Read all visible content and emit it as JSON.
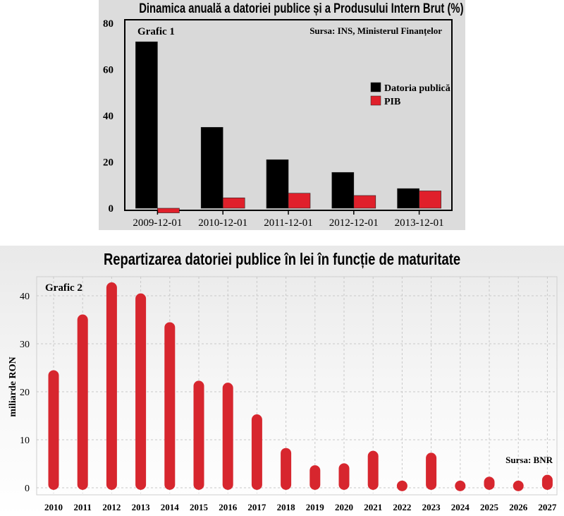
{
  "chart_data": [
    {
      "type": "bar",
      "title": "Dinamica anuală a datoriei publice și a Produsului Intern Brut (%)",
      "panel_label": "Grafic 1",
      "source": "Sursa: INS, Ministerul Finanțelor",
      "categories": [
        "2009-12-01",
        "2010-12-01",
        "2011-12-01",
        "2012-12-01",
        "2013-12-01"
      ],
      "series": [
        {
          "name": "Datoria publică",
          "color": "#000000",
          "values": [
            72,
            35,
            21,
            15.5,
            8.5
          ]
        },
        {
          "name": "PIB",
          "color": "#e0202b",
          "values": [
            -2,
            4.5,
            6.5,
            5.5,
            7.5
          ]
        }
      ],
      "ylim": [
        -2,
        80
      ],
      "yticks": [
        0,
        20,
        40,
        60,
        80
      ],
      "legend": "right",
      "grid": false
    },
    {
      "type": "bar",
      "title": "Repartizarea datoriei publice în lei în funcție de maturitate",
      "panel_label": "Grafic 2",
      "source": "Sursa: BNR",
      "ylabel": "miliarde RON",
      "categories": [
        "2010",
        "2011",
        "2012",
        "2013",
        "2014",
        "2015",
        "2016",
        "2017",
        "2018",
        "2019",
        "2020",
        "2021",
        "2022",
        "2023",
        "2024",
        "2025",
        "2026",
        "2027"
      ],
      "series": [
        {
          "color": "#d7262e",
          "values": [
            24.2,
            35.8,
            42.5,
            40.2,
            34.2,
            22,
            21.6,
            15,
            8,
            4.4,
            4.8,
            7.4,
            1.2,
            7,
            1.2,
            2,
            1.2,
            2.4
          ]
        }
      ],
      "ylim": [
        0,
        43
      ],
      "yticks": [
        0,
        10,
        20,
        30,
        40
      ],
      "grid": true
    }
  ]
}
